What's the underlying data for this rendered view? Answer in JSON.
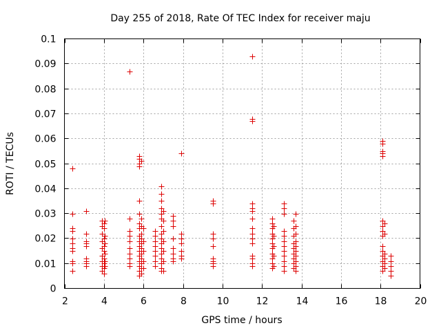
{
  "chart_data": {
    "type": "scatter",
    "title": "Day 255 of 2018, Rate Of TEC Index for receiver maju",
    "xlabel": "GPS time / hours",
    "ylabel": "ROTI / TECUs",
    "xlim": [
      2,
      20
    ],
    "ylim": [
      0,
      0.1
    ],
    "grid": true,
    "marker": "+",
    "color": "#dd0000",
    "x_ticks": [
      2,
      4,
      6,
      8,
      10,
      12,
      14,
      16,
      18,
      20
    ],
    "x_tick_labels": [
      "2",
      "4",
      "6",
      "8",
      "10",
      "12",
      "14",
      "16",
      "18",
      "20"
    ],
    "y_ticks": [
      0,
      0.01,
      0.02,
      0.03,
      0.04,
      0.05,
      0.06,
      0.07,
      0.08,
      0.09,
      0.1
    ],
    "y_tick_labels": [
      "0",
      "0.01",
      "0.02",
      "0.03",
      "0.04",
      "0.05",
      "0.06",
      "0.07",
      "0.08",
      "0.09",
      "0.1"
    ],
    "series": [
      {
        "name": "ROTI",
        "points": [
          [
            2.4,
            0.048
          ],
          [
            2.4,
            0.03
          ],
          [
            2.4,
            0.024
          ],
          [
            2.4,
            0.023
          ],
          [
            2.4,
            0.02
          ],
          [
            2.4,
            0.018
          ],
          [
            2.4,
            0.016
          ],
          [
            2.4,
            0.015
          ],
          [
            2.4,
            0.011
          ],
          [
            2.4,
            0.01
          ],
          [
            2.4,
            0.007
          ],
          [
            3.1,
            0.031
          ],
          [
            3.1,
            0.022
          ],
          [
            3.1,
            0.019
          ],
          [
            3.1,
            0.018
          ],
          [
            3.1,
            0.017
          ],
          [
            3.1,
            0.012
          ],
          [
            3.1,
            0.011
          ],
          [
            3.1,
            0.01
          ],
          [
            3.1,
            0.009
          ],
          [
            3.9,
            0.027
          ],
          [
            3.9,
            0.025
          ],
          [
            3.9,
            0.022
          ],
          [
            3.9,
            0.019
          ],
          [
            3.9,
            0.016
          ],
          [
            3.9,
            0.013
          ],
          [
            3.9,
            0.011
          ],
          [
            3.9,
            0.009
          ],
          [
            3.9,
            0.007
          ],
          [
            4.0,
            0.026
          ],
          [
            4.0,
            0.024
          ],
          [
            4.0,
            0.02
          ],
          [
            4.0,
            0.017
          ],
          [
            4.0,
            0.015
          ],
          [
            4.0,
            0.012
          ],
          [
            4.0,
            0.01
          ],
          [
            4.0,
            0.008
          ],
          [
            4.0,
            0.006
          ],
          [
            4.05,
            0.027
          ],
          [
            4.05,
            0.021
          ],
          [
            4.05,
            0.018
          ],
          [
            4.05,
            0.014
          ],
          [
            4.05,
            0.011
          ],
          [
            4.05,
            0.009
          ],
          [
            5.3,
            0.087
          ],
          [
            5.3,
            0.028
          ],
          [
            5.3,
            0.023
          ],
          [
            5.3,
            0.021
          ],
          [
            5.3,
            0.019
          ],
          [
            5.3,
            0.016
          ],
          [
            5.3,
            0.014
          ],
          [
            5.3,
            0.012
          ],
          [
            5.3,
            0.01
          ],
          [
            5.3,
            0.009
          ],
          [
            5.8,
            0.053
          ],
          [
            5.8,
            0.052
          ],
          [
            5.8,
            0.05
          ],
          [
            5.8,
            0.049
          ],
          [
            5.8,
            0.035
          ],
          [
            5.8,
            0.03
          ],
          [
            5.8,
            0.026
          ],
          [
            5.8,
            0.024
          ],
          [
            5.8,
            0.021
          ],
          [
            5.8,
            0.019
          ],
          [
            5.8,
            0.017
          ],
          [
            5.8,
            0.015
          ],
          [
            5.8,
            0.013
          ],
          [
            5.8,
            0.011
          ],
          [
            5.8,
            0.009
          ],
          [
            5.8,
            0.007
          ],
          [
            5.8,
            0.005
          ],
          [
            5.9,
            0.051
          ],
          [
            5.9,
            0.028
          ],
          [
            5.9,
            0.025
          ],
          [
            5.9,
            0.022
          ],
          [
            5.9,
            0.02
          ],
          [
            5.9,
            0.018
          ],
          [
            5.9,
            0.016
          ],
          [
            5.9,
            0.014
          ],
          [
            5.9,
            0.012
          ],
          [
            5.9,
            0.01
          ],
          [
            5.9,
            0.008
          ],
          [
            5.9,
            0.006
          ],
          [
            6.0,
            0.024
          ],
          [
            6.0,
            0.019
          ],
          [
            6.0,
            0.015
          ],
          [
            6.0,
            0.011
          ],
          [
            6.0,
            0.008
          ],
          [
            6.6,
            0.023
          ],
          [
            6.6,
            0.021
          ],
          [
            6.6,
            0.019
          ],
          [
            6.6,
            0.017
          ],
          [
            6.6,
            0.015
          ],
          [
            6.6,
            0.013
          ],
          [
            6.6,
            0.011
          ],
          [
            6.6,
            0.009
          ],
          [
            6.9,
            0.041
          ],
          [
            6.9,
            0.038
          ],
          [
            6.9,
            0.035
          ],
          [
            6.9,
            0.032
          ],
          [
            6.9,
            0.03
          ],
          [
            6.9,
            0.028
          ],
          [
            6.9,
            0.025
          ],
          [
            6.9,
            0.022
          ],
          [
            6.9,
            0.02
          ],
          [
            6.9,
            0.018
          ],
          [
            6.9,
            0.016
          ],
          [
            6.9,
            0.014
          ],
          [
            6.9,
            0.012
          ],
          [
            6.9,
            0.01
          ],
          [
            6.9,
            0.008
          ],
          [
            6.9,
            0.007
          ],
          [
            7.0,
            0.031
          ],
          [
            7.0,
            0.027
          ],
          [
            7.0,
            0.023
          ],
          [
            7.0,
            0.019
          ],
          [
            7.0,
            0.015
          ],
          [
            7.0,
            0.011
          ],
          [
            7.0,
            0.007
          ],
          [
            7.5,
            0.029
          ],
          [
            7.5,
            0.027
          ],
          [
            7.5,
            0.025
          ],
          [
            7.5,
            0.02
          ],
          [
            7.5,
            0.016
          ],
          [
            7.5,
            0.014
          ],
          [
            7.5,
            0.012
          ],
          [
            7.5,
            0.011
          ],
          [
            7.9,
            0.054
          ],
          [
            7.9,
            0.022
          ],
          [
            7.9,
            0.02
          ],
          [
            7.9,
            0.018
          ],
          [
            7.9,
            0.015
          ],
          [
            7.9,
            0.013
          ],
          [
            7.9,
            0.012
          ],
          [
            9.5,
            0.035
          ],
          [
            9.5,
            0.034
          ],
          [
            9.5,
            0.022
          ],
          [
            9.5,
            0.02
          ],
          [
            9.5,
            0.017
          ],
          [
            9.5,
            0.012
          ],
          [
            9.5,
            0.011
          ],
          [
            9.5,
            0.01
          ],
          [
            9.5,
            0.009
          ],
          [
            11.5,
            0.093
          ],
          [
            11.5,
            0.068
          ],
          [
            11.5,
            0.067
          ],
          [
            11.5,
            0.034
          ],
          [
            11.5,
            0.032
          ],
          [
            11.5,
            0.031
          ],
          [
            11.5,
            0.028
          ],
          [
            11.5,
            0.024
          ],
          [
            11.5,
            0.022
          ],
          [
            11.5,
            0.02
          ],
          [
            11.5,
            0.018
          ],
          [
            11.5,
            0.013
          ],
          [
            11.5,
            0.012
          ],
          [
            11.5,
            0.01
          ],
          [
            11.5,
            0.009
          ],
          [
            12.5,
            0.028
          ],
          [
            12.5,
            0.026
          ],
          [
            12.5,
            0.024
          ],
          [
            12.5,
            0.022
          ],
          [
            12.5,
            0.02
          ],
          [
            12.5,
            0.018
          ],
          [
            12.5,
            0.016
          ],
          [
            12.5,
            0.014
          ],
          [
            12.5,
            0.012
          ],
          [
            12.5,
            0.01
          ],
          [
            12.5,
            0.008
          ],
          [
            12.6,
            0.025
          ],
          [
            12.6,
            0.021
          ],
          [
            12.6,
            0.017
          ],
          [
            12.6,
            0.013
          ],
          [
            12.6,
            0.009
          ],
          [
            13.1,
            0.034
          ],
          [
            13.1,
            0.032
          ],
          [
            13.1,
            0.03
          ],
          [
            13.1,
            0.023
          ],
          [
            13.1,
            0.021
          ],
          [
            13.1,
            0.019
          ],
          [
            13.1,
            0.017
          ],
          [
            13.1,
            0.015
          ],
          [
            13.1,
            0.013
          ],
          [
            13.1,
            0.011
          ],
          [
            13.1,
            0.009
          ],
          [
            13.1,
            0.007
          ],
          [
            13.6,
            0.027
          ],
          [
            13.6,
            0.024
          ],
          [
            13.6,
            0.021
          ],
          [
            13.6,
            0.018
          ],
          [
            13.6,
            0.016
          ],
          [
            13.6,
            0.014
          ],
          [
            13.6,
            0.012
          ],
          [
            13.6,
            0.01
          ],
          [
            13.6,
            0.008
          ],
          [
            13.7,
            0.03
          ],
          [
            13.7,
            0.025
          ],
          [
            13.7,
            0.022
          ],
          [
            13.7,
            0.019
          ],
          [
            13.7,
            0.017
          ],
          [
            13.7,
            0.015
          ],
          [
            13.7,
            0.013
          ],
          [
            13.7,
            0.011
          ],
          [
            13.7,
            0.009
          ],
          [
            13.7,
            0.007
          ],
          [
            18.1,
            0.059
          ],
          [
            18.1,
            0.058
          ],
          [
            18.1,
            0.055
          ],
          [
            18.1,
            0.054
          ],
          [
            18.1,
            0.053
          ],
          [
            18.1,
            0.027
          ],
          [
            18.1,
            0.025
          ],
          [
            18.1,
            0.023
          ],
          [
            18.1,
            0.021
          ],
          [
            18.1,
            0.017
          ],
          [
            18.1,
            0.015
          ],
          [
            18.1,
            0.013
          ],
          [
            18.1,
            0.011
          ],
          [
            18.1,
            0.009
          ],
          [
            18.1,
            0.007
          ],
          [
            18.2,
            0.026
          ],
          [
            18.2,
            0.022
          ],
          [
            18.2,
            0.014
          ],
          [
            18.2,
            0.012
          ],
          [
            18.2,
            0.01
          ],
          [
            18.2,
            0.008
          ],
          [
            18.5,
            0.013
          ],
          [
            18.5,
            0.011
          ],
          [
            18.5,
            0.009
          ],
          [
            18.5,
            0.007
          ],
          [
            18.5,
            0.005
          ]
        ]
      }
    ]
  }
}
